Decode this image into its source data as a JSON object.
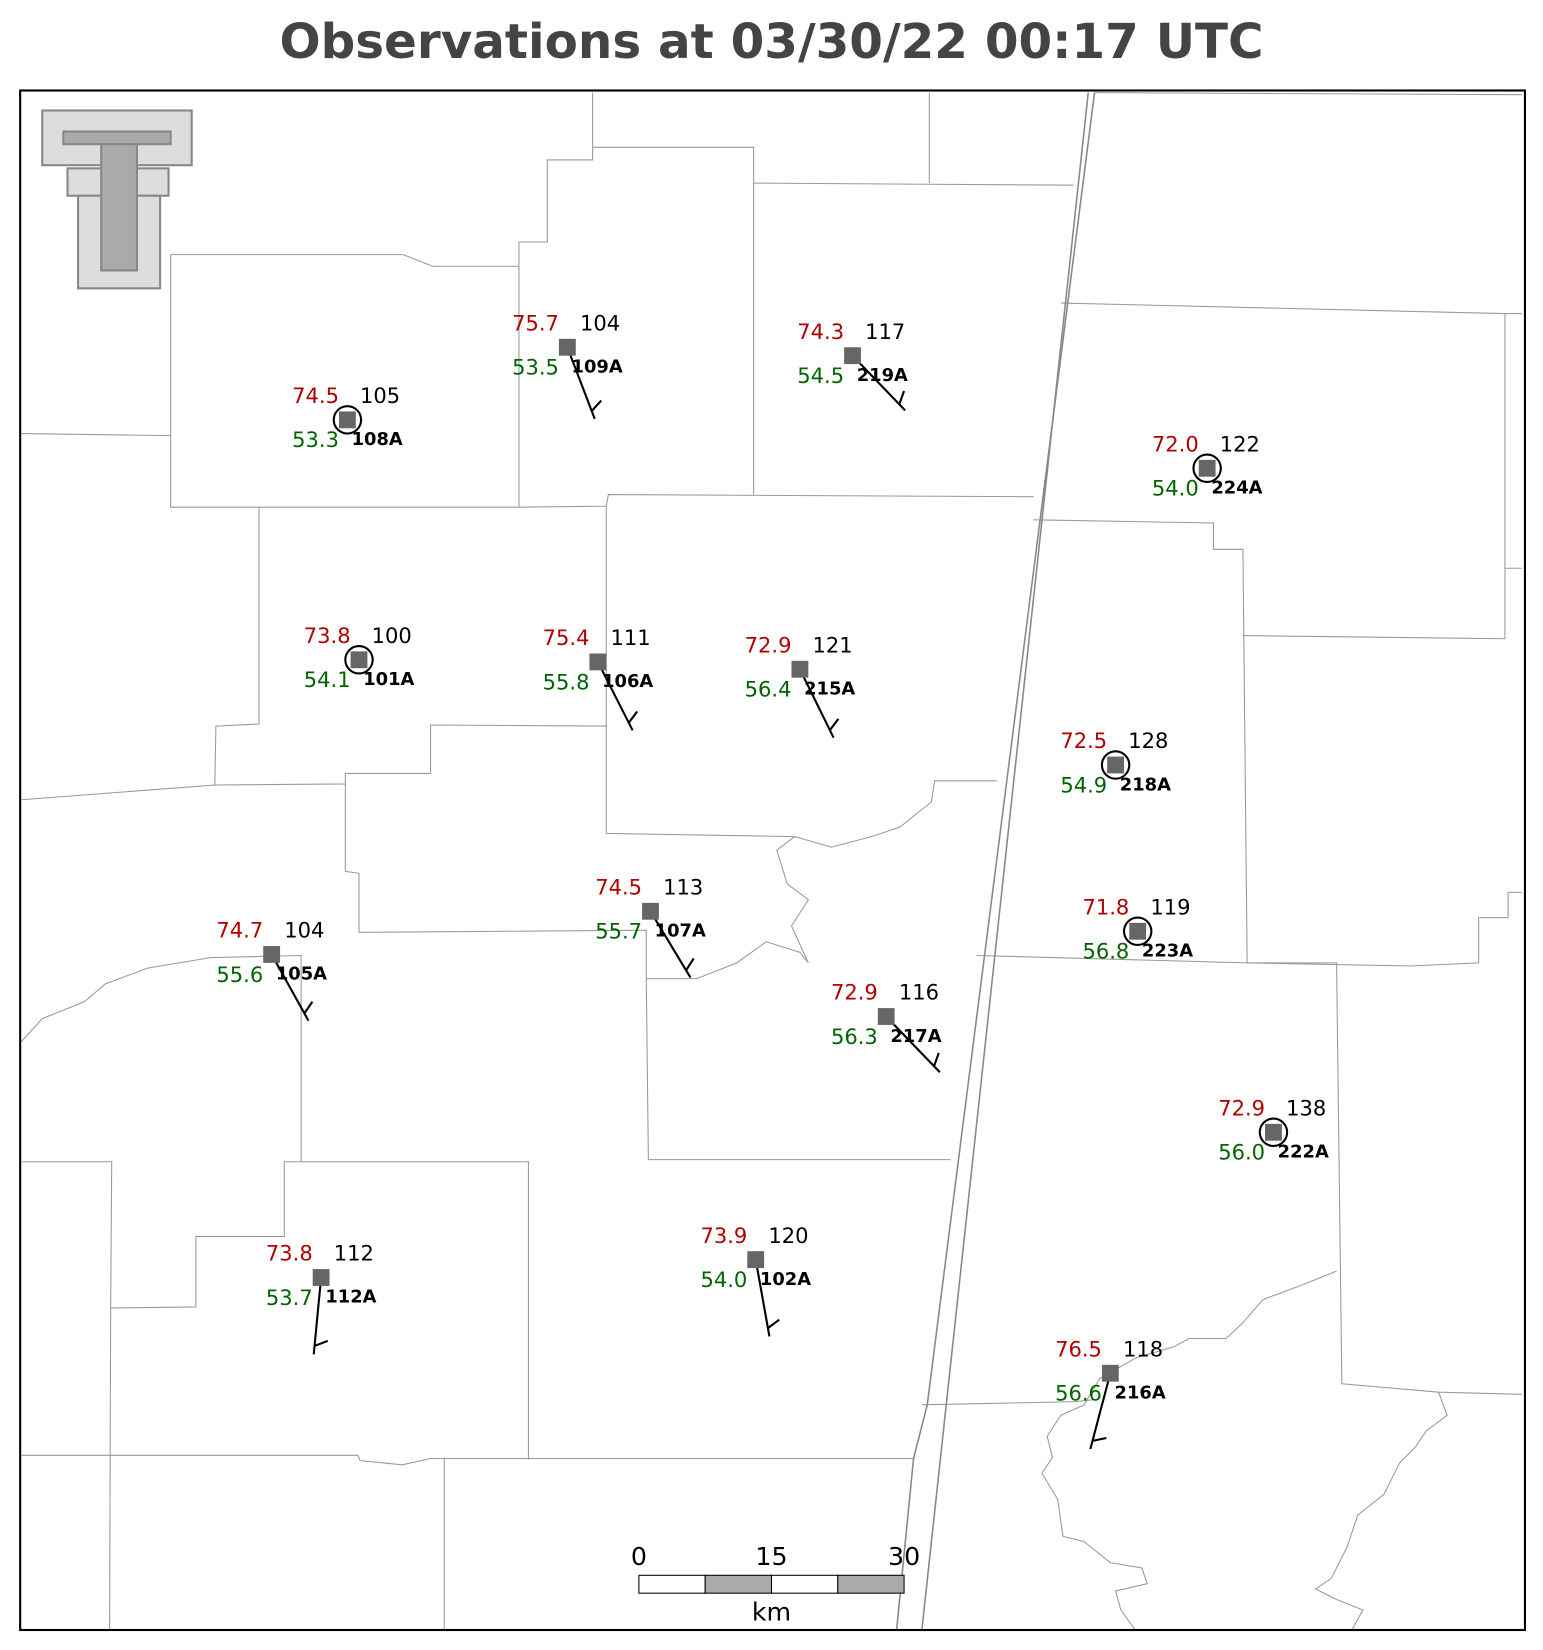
{
  "title": "Observations at 03/30/22 00:17 UTC",
  "stations": [
    {
      "temp": "74.5",
      "dewpoint": "53.3",
      "pressure": "105",
      "id": "108A"
    },
    {
      "temp": "75.7",
      "dewpoint": "53.5",
      "pressure": "104",
      "id": "109A"
    },
    {
      "temp": "74.3",
      "dewpoint": "54.5",
      "pressure": "117",
      "id": "219A"
    },
    {
      "temp": "72.0",
      "dewpoint": "54.0",
      "pressure": "122",
      "id": "224A"
    },
    {
      "temp": "73.8",
      "dewpoint": "54.1",
      "pressure": "100",
      "id": "101A"
    },
    {
      "temp": "75.4",
      "dewpoint": "55.8",
      "pressure": "111",
      "id": "106A"
    },
    {
      "temp": "72.9",
      "dewpoint": "56.4",
      "pressure": "121",
      "id": "215A"
    },
    {
      "temp": "72.5",
      "dewpoint": "54.9",
      "pressure": "128",
      "id": "218A"
    },
    {
      "temp": "71.8",
      "dewpoint": "56.8",
      "pressure": "119",
      "id": "223A"
    },
    {
      "temp": "74.5",
      "dewpoint": "55.7",
      "pressure": "113",
      "id": "107A"
    },
    {
      "temp": "74.7",
      "dewpoint": "55.6",
      "pressure": "104",
      "id": "105A"
    },
    {
      "temp": "72.9",
      "dewpoint": "56.3",
      "pressure": "116",
      "id": "217A"
    },
    {
      "temp": "72.9",
      "dewpoint": "56.0",
      "pressure": "138",
      "id": "222A"
    },
    {
      "temp": "73.8",
      "dewpoint": "53.7",
      "pressure": "112",
      "id": "112A"
    },
    {
      "temp": "73.9",
      "dewpoint": "54.0",
      "pressure": "120",
      "id": "102A"
    },
    {
      "temp": "76.5",
      "dewpoint": "56.6",
      "pressure": "118",
      "id": "216A"
    }
  ],
  "scale_bar": {
    "labels": [
      "0",
      "15",
      "30"
    ],
    "unit": "km"
  }
}
